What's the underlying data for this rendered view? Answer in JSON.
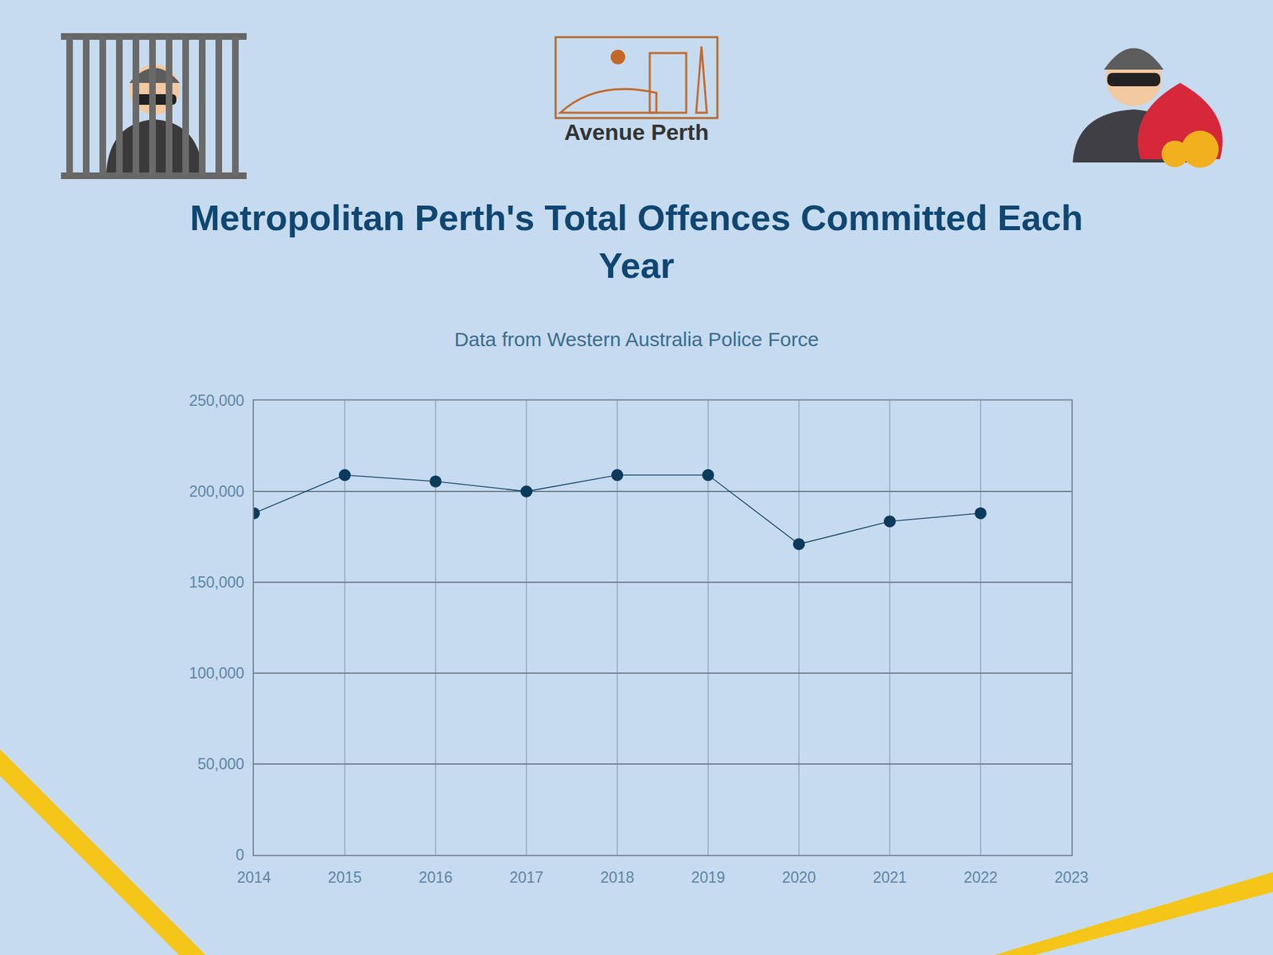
{
  "logo": "Avenue Perth",
  "chart_data": {
    "type": "line",
    "title": "Metropolitan Perth's Total Offences Committed Each Year",
    "subtitle": "Data from Western Australia Police Force",
    "x": [
      2014,
      2015,
      2016,
      2017,
      2018,
      2019,
      2020,
      2021,
      2022
    ],
    "values": [
      188000,
      209000,
      205500,
      200000,
      209000,
      209000,
      171000,
      183500,
      188000
    ],
    "color": "#0b3a5c",
    "marker": "circle",
    "xlim": [
      2014,
      2023
    ],
    "xticks": [
      2014,
      2015,
      2016,
      2017,
      2018,
      2019,
      2020,
      2021,
      2022,
      2023
    ],
    "ylim": [
      0,
      250000
    ],
    "yticks": [
      0,
      {
        "value": 50000,
        "label": "50,000"
      },
      {
        "value": 100000,
        "label": "100,000"
      },
      {
        "value": 150000,
        "label": "150,000"
      },
      {
        "value": 200000,
        "label": "200,000"
      },
      {
        "value": 250000,
        "label": "250,000"
      }
    ],
    "grid": true
  }
}
